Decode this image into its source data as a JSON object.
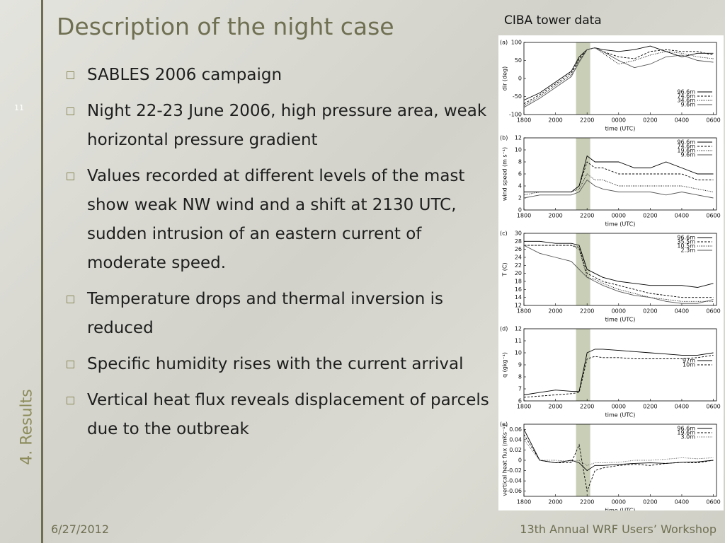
{
  "slide": {
    "title": "Description of the night case",
    "page_number": "11",
    "section": "4. Results",
    "bullets": [
      "SABLES 2006 campaign",
      "Night 22-23 June 2006, high pressure area, weak horizontal pressure gradient",
      "Values recorded at different levels of the mast show weak NW wind and a shift at 2130 UTC, sudden intrusion of an eastern current of moderate speed.",
      "Temperature drops and thermal inversion is reduced",
      "Specific humidity rises with the current arrival",
      "Vertical heat flux reveals displacement of parcels due to the outbreak"
    ],
    "figure_caption": "CIBA tower data",
    "date": "6/27/2012",
    "footer": "13th Annual WRF Users’ Workshop"
  },
  "chart_data": [
    {
      "type": "line",
      "panel_label": "(a)",
      "ylabel": "dir (deg)",
      "xlabel": "time (UTC)",
      "x": [
        18,
        19,
        20,
        21,
        21.5,
        22,
        22.5,
        23,
        24,
        25,
        26,
        27,
        28,
        29,
        30
      ],
      "xlim": [
        18,
        30.2
      ],
      "xticks": [
        {
          "value": 18,
          "label": "1800"
        },
        {
          "value": 20,
          "label": "2000"
        },
        {
          "value": 22,
          "label": "2200"
        },
        {
          "value": 24,
          "label": "0000"
        },
        {
          "value": 26,
          "label": "0200"
        },
        {
          "value": 28,
          "label": "0400"
        },
        {
          "value": 30,
          "label": "0600"
        }
      ],
      "ylim": [
        -100,
        100
      ],
      "yticks": [
        -100,
        -50,
        0,
        50,
        100
      ],
      "highlight": [
        21.3,
        22.2
      ],
      "legend": "lower right",
      "series": [
        {
          "name": "96.6m",
          "color": "#000000",
          "dash": "solid",
          "values": [
            -60,
            -40,
            -10,
            20,
            60,
            80,
            85,
            80,
            75,
            80,
            90,
            75,
            60,
            70,
            70
          ]
        },
        {
          "name": "74.6m",
          "color": "#000000",
          "dash": "dashed",
          "values": [
            -70,
            -45,
            -15,
            15,
            55,
            80,
            85,
            75,
            60,
            55,
            75,
            80,
            75,
            75,
            65
          ]
        },
        {
          "name": "34.6m",
          "color": "#000000",
          "dash": "dotted",
          "values": [
            -75,
            -50,
            -20,
            10,
            50,
            80,
            85,
            70,
            40,
            50,
            65,
            75,
            70,
            60,
            55
          ]
        },
        {
          "name": "9.6m",
          "color": "#555555",
          "dash": "solid",
          "values": [
            -80,
            -55,
            -25,
            5,
            45,
            80,
            85,
            75,
            50,
            30,
            40,
            60,
            65,
            50,
            45
          ]
        }
      ]
    },
    {
      "type": "line",
      "panel_label": "(b)",
      "ylabel": "wind speed (m s⁻¹)",
      "xlabel": "time (UTC)",
      "x": [
        18,
        19,
        20,
        21,
        21.5,
        22,
        22.5,
        23,
        24,
        25,
        26,
        27,
        28,
        29,
        30
      ],
      "xlim": [
        18,
        30.2
      ],
      "xticks": [
        {
          "value": 18,
          "label": "1800"
        },
        {
          "value": 20,
          "label": "2000"
        },
        {
          "value": 22,
          "label": "2200"
        },
        {
          "value": 24,
          "label": "0000"
        },
        {
          "value": 26,
          "label": "0200"
        },
        {
          "value": 28,
          "label": "0400"
        },
        {
          "value": 30,
          "label": "0600"
        }
      ],
      "ylim": [
        0,
        12
      ],
      "yticks": [
        0,
        2,
        4,
        6,
        8,
        10,
        12
      ],
      "highlight": [
        21.3,
        22.2
      ],
      "legend": "upper right",
      "series": [
        {
          "name": "96.6m",
          "color": "#000000",
          "dash": "solid",
          "values": [
            3,
            3,
            3,
            3,
            4,
            9,
            8,
            8,
            8,
            7,
            7,
            8,
            7,
            6,
            6
          ]
        },
        {
          "name": "74.6m",
          "color": "#000000",
          "dash": "dashed",
          "values": [
            3,
            3,
            3,
            3,
            4,
            8,
            7,
            7,
            6,
            6,
            6,
            6,
            6,
            5,
            5
          ]
        },
        {
          "name": "19.6m",
          "color": "#000000",
          "dash": "dotted",
          "values": [
            2.5,
            3,
            3,
            3,
            3.5,
            6,
            5,
            5,
            4,
            4,
            4,
            4,
            4,
            3.5,
            3
          ]
        },
        {
          "name": "9.6m",
          "color": "#555555",
          "dash": "solid",
          "values": [
            2,
            2.5,
            2.5,
            2.5,
            3,
            5,
            4,
            3.5,
            3,
            3,
            3,
            2.5,
            3,
            2.5,
            2
          ]
        }
      ]
    },
    {
      "type": "line",
      "panel_label": "(c)",
      "ylabel": "T (C)",
      "xlabel": "time (UTC)",
      "x": [
        18,
        19,
        20,
        21,
        21.5,
        22,
        22.5,
        23,
        24,
        25,
        26,
        27,
        28,
        29,
        30
      ],
      "xlim": [
        18,
        30.2
      ],
      "xticks": [
        {
          "value": 18,
          "label": "1800"
        },
        {
          "value": 20,
          "label": "2000"
        },
        {
          "value": 22,
          "label": "2200"
        },
        {
          "value": 24,
          "label": "0000"
        },
        {
          "value": 26,
          "label": "0200"
        },
        {
          "value": 28,
          "label": "0400"
        },
        {
          "value": 30,
          "label": "0600"
        }
      ],
      "ylim": [
        12,
        30
      ],
      "yticks": [
        12,
        14,
        16,
        18,
        20,
        22,
        24,
        26,
        28,
        30
      ],
      "highlight": [
        21.3,
        22.2
      ],
      "legend": "upper right",
      "series": [
        {
          "name": "96.6m",
          "color": "#000000",
          "dash": "solid",
          "values": [
            28,
            28,
            27.5,
            27.5,
            27,
            21,
            20,
            19,
            18,
            17.5,
            17,
            17,
            17,
            16.5,
            17.5
          ]
        },
        {
          "name": "35.5m",
          "color": "#000000",
          "dash": "dashed",
          "values": [
            27,
            27,
            27,
            27,
            26.5,
            20,
            19,
            18,
            17,
            16,
            15,
            14.5,
            14,
            14,
            14
          ]
        },
        {
          "name": "10.5m",
          "color": "#000000",
          "dash": "dotted",
          "values": [
            27,
            27,
            27,
            27,
            26,
            19,
            18.5,
            17.5,
            16,
            15,
            14,
            13.5,
            13,
            13,
            13
          ]
        },
        {
          "name": "2.3m",
          "color": "#555555",
          "dash": "solid",
          "values": [
            27,
            25,
            24,
            23,
            21,
            19,
            18,
            17,
            15.5,
            14.5,
            14,
            13,
            12.5,
            12.5,
            13.5
          ]
        }
      ]
    },
    {
      "type": "line",
      "panel_label": "(d)",
      "ylabel": "q (gkg⁻¹)",
      "xlabel": "time (UTC)",
      "x": [
        18,
        19,
        20,
        21,
        21.5,
        22,
        22.5,
        23,
        24,
        25,
        26,
        27,
        28,
        29,
        30
      ],
      "xlim": [
        18,
        30.2
      ],
      "xticks": [
        {
          "value": 18,
          "label": "1800"
        },
        {
          "value": 20,
          "label": "2000"
        },
        {
          "value": 22,
          "label": "2200"
        },
        {
          "value": 24,
          "label": "0000"
        },
        {
          "value": 26,
          "label": "0200"
        },
        {
          "value": 28,
          "label": "0400"
        },
        {
          "value": 30,
          "label": "0600"
        }
      ],
      "ylim": [
        6,
        12
      ],
      "yticks": [
        6,
        7,
        8,
        9,
        10,
        11,
        12
      ],
      "highlight": [
        21.3,
        22.2
      ],
      "legend": "center right",
      "series": [
        {
          "name": "97m",
          "color": "#000000",
          "dash": "solid",
          "values": [
            6.5,
            6.7,
            6.9,
            6.8,
            6.8,
            10.0,
            10.3,
            10.3,
            10.2,
            10.1,
            10.0,
            9.9,
            9.8,
            9.8,
            10.0
          ]
        },
        {
          "name": "10m",
          "color": "#000000",
          "dash": "dashed",
          "values": [
            6.3,
            6.4,
            6.5,
            6.6,
            6.7,
            9.5,
            9.7,
            9.6,
            9.6,
            9.5,
            9.5,
            9.5,
            9.5,
            9.6,
            9.8
          ]
        }
      ]
    },
    {
      "type": "line",
      "panel_label": "(e)",
      "ylabel": "vertical heat flux (mKs⁻¹)",
      "xlabel": "time (UTC)",
      "x": [
        18,
        19,
        20,
        21,
        21.5,
        22,
        22.5,
        23,
        24,
        25,
        26,
        27,
        28,
        29,
        30
      ],
      "xlim": [
        18,
        30.2
      ],
      "xticks": [
        {
          "value": 18,
          "label": "1800"
        },
        {
          "value": 20,
          "label": "2000"
        },
        {
          "value": 22,
          "label": "2200"
        },
        {
          "value": 24,
          "label": "0000"
        },
        {
          "value": 26,
          "label": "0200"
        },
        {
          "value": 28,
          "label": "0400"
        },
        {
          "value": 30,
          "label": "0600"
        }
      ],
      "ylim": [
        -0.07,
        0.07
      ],
      "yticks": [
        -0.06,
        -0.04,
        -0.02,
        0,
        0.02,
        0.04,
        0.06
      ],
      "highlight": [
        21.3,
        22.2
      ],
      "legend": "upper right",
      "series": [
        {
          "name": "96.6m",
          "color": "#000000",
          "dash": "solid",
          "values": [
            0.06,
            0,
            -0.005,
            0,
            -0.005,
            -0.02,
            -0.01,
            -0.01,
            -0.008,
            -0.006,
            -0.005,
            -0.006,
            -0.004,
            -0.003,
            0
          ]
        },
        {
          "name": "19.6m",
          "color": "#000000",
          "dash": "dashed",
          "values": [
            0.05,
            0,
            -0.005,
            -0.005,
            0.03,
            -0.06,
            -0.02,
            -0.015,
            -0.01,
            -0.008,
            -0.01,
            -0.006,
            -0.004,
            -0.005,
            0
          ]
        },
        {
          "name": "3.0m",
          "color": "#555555",
          "dash": "dotted",
          "values": [
            0.04,
            0,
            0,
            -0.002,
            0,
            -0.01,
            -0.005,
            -0.005,
            -0.004,
            0,
            0,
            0.002,
            0.005,
            0.003,
            0.005
          ]
        }
      ]
    }
  ]
}
